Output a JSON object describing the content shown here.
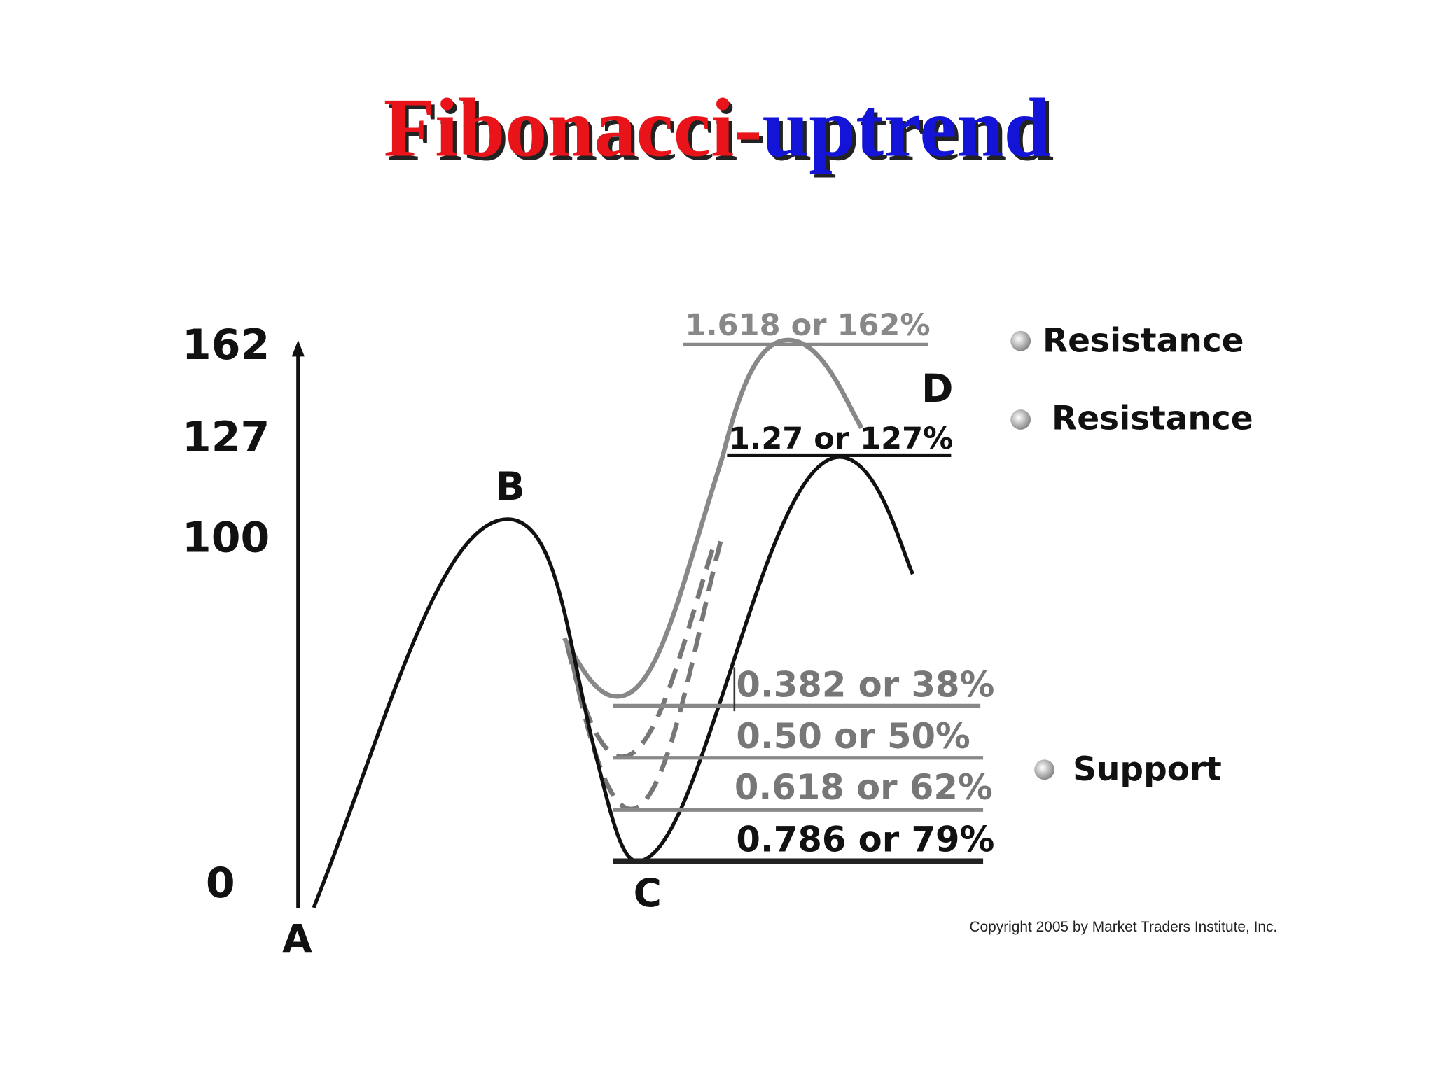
{
  "title": {
    "part1": "Fibonacci-",
    "part2": "uptrend"
  },
  "axis_labels": [
    "162",
    "127",
    "100",
    "0"
  ],
  "points": [
    "A",
    "B",
    "C",
    "D"
  ],
  "levels": [
    "1.618 or 162%",
    "1.27 or 127%",
    "0.382 or 38%",
    "0.50 or 50%",
    "0.618 or 62%",
    "0.786 or 79%"
  ],
  "legend": [
    "Resistance",
    "Resistance",
    "Support"
  ],
  "copyright": "Copyright 2005 by Market Traders Institute, Inc."
}
